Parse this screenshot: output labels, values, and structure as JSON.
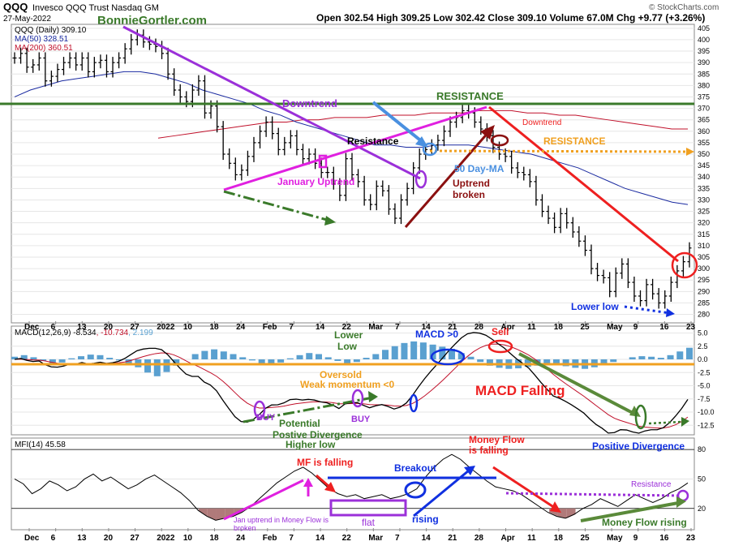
{
  "header": {
    "symbol": "QQQ",
    "name": "Invesco QQQ Trust Nasdaq GM",
    "date": "27-May-2022",
    "watermark": "BonnieGortler.com",
    "ohlc": "Open 302.54  High 309.25  Low 302.42  Close 309.10  Volume 67.0M  Chg +9.77 (+3.26%)",
    "credit": "© StockCharts.com"
  },
  "price_legend": {
    "main": "QQQ (Daily) 309.10",
    "ma50": "MA(50) 328.51",
    "ma200": "MA(200) 360.51"
  },
  "macd_legend": {
    "prefix": "MACD(12,26,9) ",
    "macd": "-8.534",
    "signal": ", -10.734",
    "hist": ", 2.199"
  },
  "mfi_legend": "MFI(14) 45.58",
  "colors": {
    "price": "#000000",
    "ma50": "#1a2aa0",
    "ma200": "#c0102a",
    "green": "#3a7a2a",
    "purple": "#9b30d9",
    "magenta": "#e020e0",
    "blue": "#1030e0",
    "red": "#ee2020",
    "orange": "#f0a020",
    "darkred": "#8b1010",
    "hist": "#5aa0d0",
    "lightblue": "#4a90e0"
  },
  "x_axis": {
    "ticks": [
      "Dec",
      "6",
      "13",
      "20",
      "27",
      "2022",
      "10",
      "18",
      "24",
      "Feb",
      "7",
      "14",
      "22",
      "Mar",
      "7",
      "14",
      "21",
      "28",
      "Apr",
      "11",
      "18",
      "25",
      "May",
      "9",
      "16",
      "23"
    ]
  },
  "annotations": {
    "price": {
      "downtrend": "Downtrend",
      "resistance_top": "RESISTANCE",
      "resistance": "Resistance",
      "january_uptrend": "January Uptrend",
      "uptrend": "Uptrend",
      "broken": "broken",
      "ma50_label": "50 Day-MA",
      "downtrend_red": "Downtrend",
      "resistance_orange": "RESISTANCE",
      "lower_low": "Lower low"
    },
    "macd": {
      "lower": "Lower",
      "low": "Low",
      "macd_gt0": "MACD >0",
      "sell": "Sell",
      "oversold": "Oversold",
      "weak_momentum": "Weak momentum <0",
      "macd_falling": "MACD Falling",
      "buy1": "BUY",
      "buy2": "BUY",
      "potential": "Potential",
      "positive_divergence": "Postive Divergence",
      "higher_low": "Higher low",
      "positive_divergence2": "Positive Divergence"
    },
    "mfi": {
      "mf_falling": "MF is falling",
      "breakout": "Breakout",
      "money_flow": "Money Flow",
      "is_falling": "is falling",
      "jan_uptrend": "Jan uptrend in Money Flow is",
      "broken": "broken",
      "flat": "flat",
      "rising": "rising",
      "resistance": "Resistance",
      "money_flow_rising": "Money Flow rising"
    }
  },
  "chart_data": [
    {
      "type": "line",
      "title": "QQQ (Daily) 309.10",
      "ylim": [
        277,
        406
      ],
      "y_ticks": [
        280,
        285,
        290,
        295,
        300,
        305,
        310,
        315,
        320,
        325,
        330,
        335,
        340,
        345,
        350,
        355,
        360,
        365,
        370,
        375,
        380,
        385,
        390,
        395,
        400,
        405
      ],
      "series": [
        {
          "name": "QQQ (Daily) 309.10",
          "values": [
            392,
            394,
            388,
            389,
            392,
            382,
            384,
            387,
            390,
            392,
            389,
            392,
            386,
            390,
            391,
            386,
            390,
            392,
            396,
            400,
            402,
            399,
            398,
            397,
            394,
            385,
            378,
            375,
            373,
            378,
            382,
            368,
            371,
            362,
            350,
            346,
            341,
            343,
            349,
            355,
            360,
            364,
            359,
            352,
            355,
            358,
            352,
            348,
            350,
            346,
            342,
            342,
            337,
            332,
            348,
            341,
            338,
            330,
            328,
            336,
            334,
            326,
            322,
            330,
            335,
            344,
            350,
            352,
            354,
            356,
            360,
            364,
            366,
            369,
            368,
            364,
            361,
            358,
            353,
            350,
            349,
            344,
            342,
            341,
            338,
            330,
            325,
            322,
            318,
            324,
            320,
            316,
            312,
            308,
            300,
            297,
            296,
            290,
            298,
            302,
            294,
            288,
            286,
            293,
            289,
            285,
            288,
            294,
            299,
            303,
            309
          ]
        },
        {
          "name": "MA(50) 328.51",
          "values": [
            375,
            378,
            380,
            382,
            383,
            384,
            385,
            386,
            386,
            385,
            383,
            381,
            378,
            376,
            374,
            372,
            369,
            367,
            364,
            362,
            360,
            358,
            356,
            354,
            354,
            353,
            353,
            354,
            354,
            354,
            353,
            352,
            351,
            350,
            348,
            346,
            344,
            341,
            338,
            335,
            333,
            331,
            329,
            328
          ]
        },
        {
          "name": "MA(200) 360.51",
          "values": [
            357,
            358,
            359,
            360,
            361,
            362,
            363,
            364,
            364,
            365,
            365,
            366,
            366,
            366,
            367,
            367,
            367,
            368,
            368,
            368,
            369,
            369,
            369,
            368,
            368,
            367,
            367,
            366,
            365,
            364,
            363,
            362,
            361,
            361
          ]
        }
      ]
    },
    {
      "type": "bar",
      "title": "MACD(12,26,9)",
      "ylim": [
        -14,
        6
      ],
      "y_ticks": [
        5.0,
        2.5,
        0.0,
        -2.5,
        -5.0,
        -7.5,
        -10.0,
        -12.5
      ],
      "histogram": [
        0.5,
        0.8,
        0.4,
        -0.3,
        -0.8,
        -0.6,
        0.2,
        0.6,
        0.9,
        0.8,
        0.3,
        -0.2,
        -0.8,
        -1.5,
        -2.5,
        -3.2,
        -2.4,
        -1.2,
        0.0,
        1.0,
        1.6,
        1.9,
        1.5,
        1.0,
        0.4,
        -0.2,
        -0.8,
        -1.1,
        -0.6,
        0.2,
        0.8,
        1.2,
        1.0,
        0.4,
        -0.3,
        -0.8,
        -0.5,
        0.3,
        1.0,
        1.8,
        2.5,
        3.1,
        3.4,
        3.2,
        2.8,
        2.4,
        2.0,
        1.2,
        0.5,
        -0.5,
        -1.2,
        -1.6,
        -1.8,
        -1.7,
        -1.4,
        -1.2,
        -1.0,
        -1.1,
        -1.3,
        -1.6,
        -1.8,
        -1.5,
        -1.0,
        -0.5,
        0.0,
        0.4,
        0.6,
        0.5,
        0.3,
        0.8,
        1.5,
        2.2
      ]
    },
    {
      "type": "line",
      "title": "MFI(14) 45.58",
      "ylim": [
        0,
        90
      ],
      "y_ticks": [
        80,
        50,
        20
      ],
      "series": [
        {
          "name": "MFI(14) 45.58",
          "values": [
            50,
            45,
            35,
            40,
            48,
            44,
            38,
            42,
            50,
            55,
            48,
            52,
            46,
            40,
            44,
            50,
            54,
            48,
            42,
            36,
            28,
            18,
            12,
            8,
            10,
            12,
            16,
            22,
            30,
            38,
            46,
            52,
            58,
            62,
            56,
            48,
            40,
            35,
            32,
            34,
            30,
            32,
            34,
            30,
            32,
            35,
            40,
            52,
            62,
            70,
            75,
            70,
            62,
            55,
            48,
            42,
            40,
            38,
            34,
            28,
            22,
            16,
            12,
            10,
            14,
            20,
            24,
            30,
            26,
            22,
            28,
            34,
            30,
            26,
            30,
            36,
            40,
            46
          ]
        }
      ]
    }
  ]
}
